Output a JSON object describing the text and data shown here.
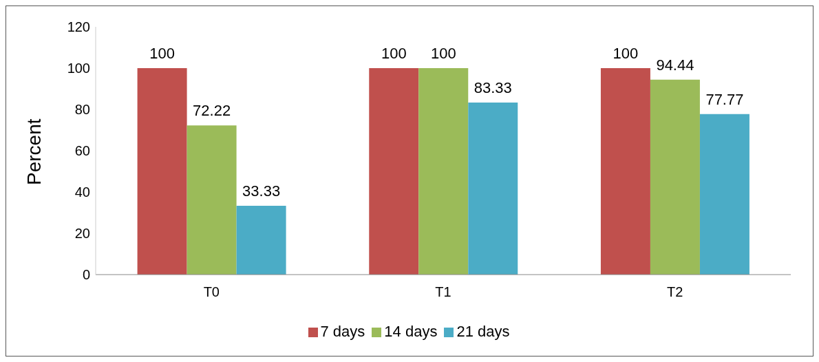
{
  "chart_data": {
    "type": "bar",
    "ylabel": "Percent",
    "categories": [
      "T0",
      "T1",
      "T2"
    ],
    "series": [
      {
        "name": "7 days",
        "color": "#c0504d",
        "values": [
          100,
          100,
          100
        ]
      },
      {
        "name": "14 days",
        "color": "#9bbb59",
        "values": [
          72.22,
          100,
          94.44
        ]
      },
      {
        "name": "21 days",
        "color": "#4bacc6",
        "values": [
          33.33,
          83.33,
          77.77
        ]
      }
    ],
    "ylim": [
      0,
      120
    ],
    "yticks": [
      0,
      20,
      40,
      60,
      80,
      100,
      120
    ],
    "data_labels": true,
    "legend": "bottom"
  }
}
